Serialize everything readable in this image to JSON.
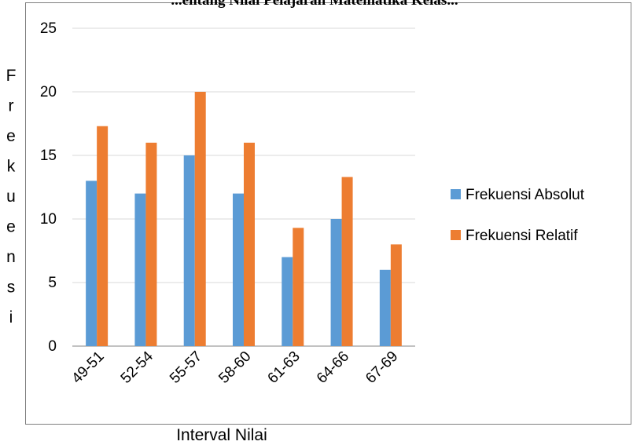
{
  "chart_data": {
    "type": "bar",
    "title": "...entang Nilai Pelajaran Matematika Kelas...",
    "xlabel": "Interval Nilai",
    "ylabel": "Frekuensi",
    "categories": [
      "49-51",
      "52-54",
      "55-57",
      "58-60",
      "61-63",
      "64-66",
      "67-69"
    ],
    "series": [
      {
        "name": "Frekuensi Absolut",
        "color": "#5B9BD5",
        "values": [
          13,
          12,
          15,
          12,
          7,
          10,
          6
        ]
      },
      {
        "name": "Frekuensi Relatif",
        "color": "#ED7D31",
        "values": [
          17.3,
          16,
          20,
          16,
          9.3,
          13.3,
          8
        ]
      }
    ],
    "ylim": [
      0,
      25
    ],
    "yticks": [
      "0",
      "5",
      "10",
      "15",
      "20",
      "25"
    ],
    "grid": true,
    "legend": "right"
  }
}
